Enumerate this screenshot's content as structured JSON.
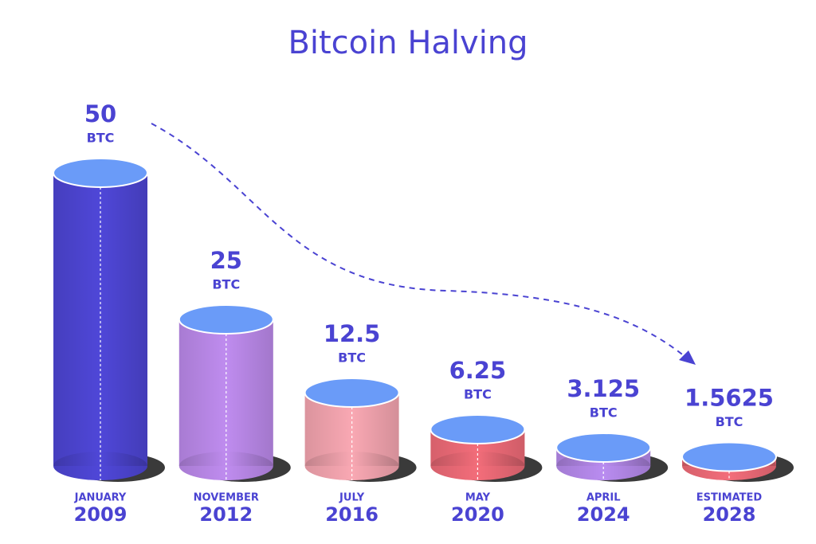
{
  "chart_data": {
    "type": "cylinder-bar",
    "title": "Bitcoin Halving",
    "categories": [
      "JANUARY",
      "NOVEMBER",
      "JULY",
      "MAY",
      "APRIL",
      "ESTIMATED"
    ],
    "years": [
      "2009",
      "2012",
      "2016",
      "2020",
      "2024",
      "2028"
    ],
    "values": [
      50,
      25,
      12.5,
      6.25,
      3.125,
      1.5625
    ],
    "unit": "BTC",
    "colors": [
      "#4f47d8",
      "#bf8cef",
      "#f9a8b3",
      "#f36d7a",
      "#b98cf0",
      "#f36d7a"
    ],
    "top_color": "#6a9bf8"
  }
}
